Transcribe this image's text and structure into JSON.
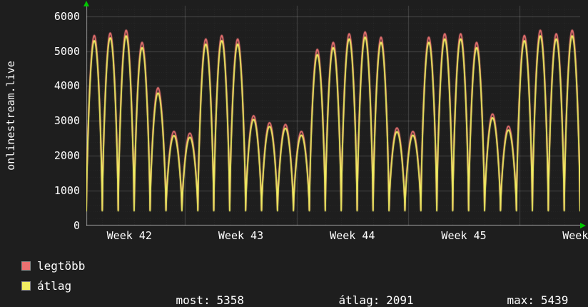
{
  "chart_data": {
    "type": "line",
    "title": "",
    "ylabel": "onlinestream.live",
    "xlabel": "",
    "ylim": [
      0,
      6300
    ],
    "y_ticks": [
      0,
      1000,
      2000,
      3000,
      4000,
      5000,
      6000
    ],
    "days": 31,
    "x_ticks": [
      {
        "label": "Week 42",
        "day": 2.7
      },
      {
        "label": "Week 43",
        "day": 9.7
      },
      {
        "label": "Week 44",
        "day": 16.7
      },
      {
        "label": "Week 45",
        "day": 23.7
      },
      {
        "label": "Week",
        "day": 30.7
      }
    ],
    "week_boundaries_days": [
      6.2,
      13.2,
      20.2,
      27.2
    ],
    "grid": true,
    "arrow_color": "#00c800",
    "series": [
      {
        "name": "legtöbb",
        "color": "#ea7171",
        "base": 450,
        "daily_peaks": [
          5450,
          5520,
          5600,
          5250,
          3950,
          2700,
          2650,
          5350,
          5450,
          5350,
          3150,
          2950,
          2900,
          2700,
          5050,
          5250,
          5500,
          5550,
          5400,
          2800,
          2700,
          5400,
          5500,
          5500,
          5250,
          3200,
          2850,
          5450,
          5600,
          5500,
          5600
        ]
      },
      {
        "name": "átlag",
        "color": "#f3ef62",
        "base": 425,
        "daily_peaks": [
          5300,
          5380,
          5439,
          5100,
          3800,
          2580,
          2530,
          5200,
          5300,
          5200,
          3040,
          2840,
          2790,
          2590,
          4900,
          5100,
          5350,
          5400,
          5250,
          2690,
          2590,
          5250,
          5350,
          5350,
          5100,
          3090,
          2740,
          5300,
          5439,
          5350,
          5439
        ]
      }
    ]
  },
  "legend": {
    "items": [
      {
        "label": "legtöbb",
        "color": "#ea7171"
      },
      {
        "label": "átlag",
        "color": "#f3ef62"
      }
    ],
    "stats": [
      {
        "label": "most:",
        "value": "5358"
      },
      {
        "label": "átlag:",
        "value": "2091"
      },
      {
        "label": "max:",
        "value": "5439"
      }
    ]
  }
}
